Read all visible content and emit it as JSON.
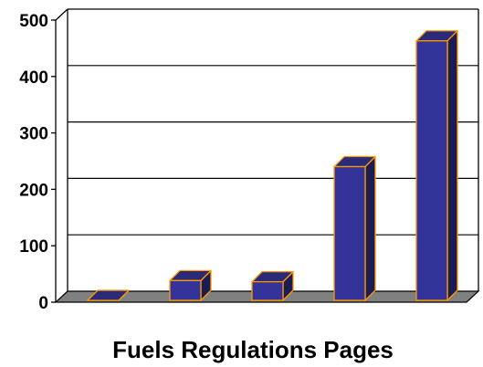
{
  "chart_data": {
    "type": "bar",
    "title": "",
    "xlabel": "Fuels Regulations Pages",
    "ylabel": "",
    "categories": [
      "",
      "",
      "",
      "",
      ""
    ],
    "values": [
      0,
      35,
      33,
      237,
      460
    ],
    "ylim": [
      0,
      500
    ],
    "yticks": [
      "0",
      "100",
      "200",
      "300",
      "400",
      "500"
    ],
    "grid": true,
    "legend": "none",
    "colors": {
      "bar_front": "#333399",
      "bar_top": "#2a2a78",
      "bar_side": "#1c1c55",
      "bar_edge": "#ff9900",
      "floor": "#808080",
      "gridline": "#000000"
    }
  }
}
